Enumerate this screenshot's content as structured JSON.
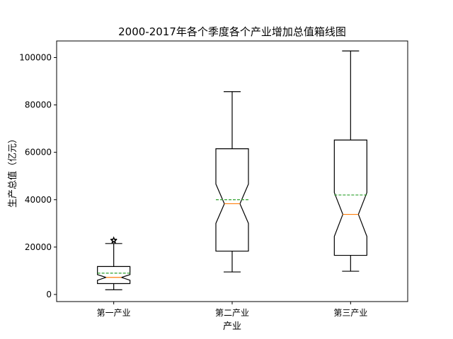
{
  "chart_data": {
    "type": "box",
    "title": "2000-2017年各个季度各个产业增加总值箱线图",
    "xlabel": "产业",
    "ylabel": "生产总值（亿元）",
    "categories": [
      "第一产业",
      "第二产业",
      "第三产业"
    ],
    "ylim": [
      -3000,
      107000
    ],
    "yticks": [
      0,
      20000,
      40000,
      60000,
      80000,
      100000
    ],
    "ytick_labels": [
      "0",
      "20000",
      "40000",
      "60000",
      "80000",
      "100000"
    ],
    "notched": true,
    "show_means": true,
    "boxes": [
      {
        "category": "第一产业",
        "whisker_low": 2000,
        "q1": 4600,
        "median": 7200,
        "mean": 9000,
        "q3": 11800,
        "whisker_high": 21500,
        "notch_low": 6000,
        "notch_high": 8400,
        "fliers": [
          22700,
          23000
        ]
      },
      {
        "category": "第二产业",
        "whisker_low": 9500,
        "q1": 18300,
        "median": 38300,
        "mean": 40000,
        "q3": 61500,
        "whisker_high": 85600,
        "notch_low": 30000,
        "notch_high": 46600,
        "fliers": []
      },
      {
        "category": "第三产业",
        "whisker_low": 9800,
        "q1": 16500,
        "median": 33800,
        "mean": 42000,
        "q3": 65200,
        "whisker_high": 102800,
        "notch_low": 24500,
        "notch_high": 43000,
        "fliers": []
      }
    ],
    "colors": {
      "box": "#000000",
      "median": "#ff7f0e",
      "mean": "#2ca02c",
      "flier": "#000000"
    },
    "grid": false
  }
}
